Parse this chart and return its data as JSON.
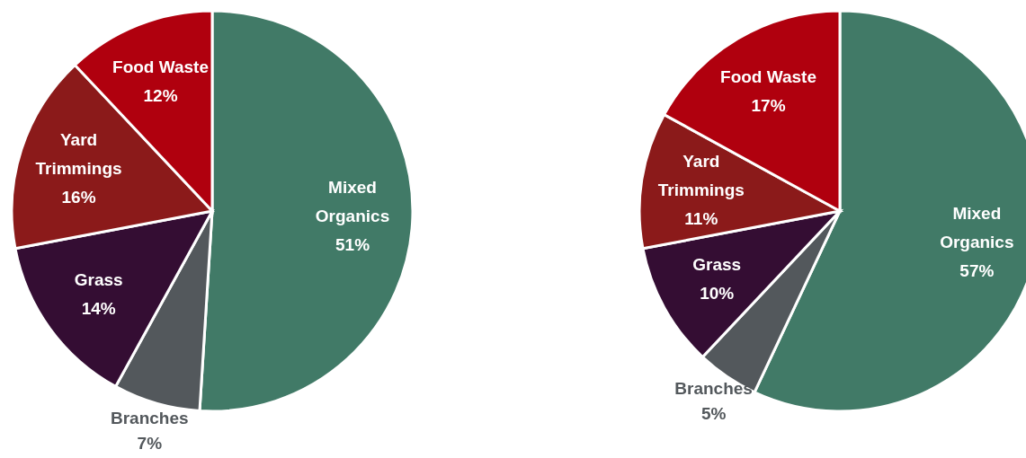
{
  "chart_data": [
    {
      "type": "pie",
      "categories": [
        "Mixed Organics",
        "Branches",
        "Grass",
        "Yard Trimmings",
        "Food Waste"
      ],
      "values": [
        51,
        7,
        14,
        16,
        12
      ],
      "value_labels": [
        "51%",
        "7%",
        "14%",
        "16%",
        "12%"
      ],
      "colors": [
        "#417a67",
        "#53585c",
        "#340d33",
        "#8b1a1a",
        "#b0000e"
      ],
      "legend": false
    },
    {
      "type": "pie",
      "categories": [
        "Mixed Organics",
        "Branches",
        "Grass",
        "Yard Trimmings",
        "Food Waste"
      ],
      "values": [
        57,
        5,
        10,
        11,
        17
      ],
      "value_labels": [
        "57%",
        "5%",
        "10%",
        "11%",
        "17%"
      ],
      "colors": [
        "#417a67",
        "#53585c",
        "#340d33",
        "#8b1a1a",
        "#b0000e"
      ],
      "legend": false
    }
  ]
}
